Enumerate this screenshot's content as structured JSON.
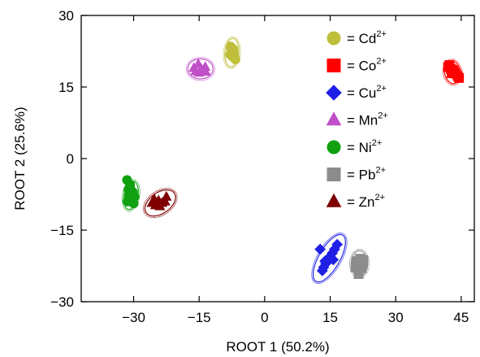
{
  "chart_data": {
    "type": "scatter",
    "xlabel": "ROOT 1 (50.2%)",
    "ylabel": "ROOT 2 (25.6%)",
    "xlim": [
      -42,
      48
    ],
    "ylim": [
      -30,
      30
    ],
    "xticks": [
      -30,
      -15,
      0,
      15,
      30,
      45
    ],
    "xtick_labels": [
      "−30",
      "−15",
      "0",
      "15",
      "30",
      "45"
    ],
    "yticks": [
      -30,
      -15,
      0,
      15,
      30
    ],
    "ytick_labels": [
      "−30",
      "−15",
      "0",
      "15",
      "30"
    ],
    "grid": false,
    "legend_position": "top-right",
    "series": [
      {
        "name": "Cd",
        "legend_prefix": "= ",
        "legend_sup": "2+",
        "marker": "circle",
        "color": "#bfbf3c",
        "ellipse": {
          "cx": -7.5,
          "cy": 22.2,
          "rx": 1.6,
          "ry": 3.0,
          "angle": 5
        },
        "points": [
          [
            -7.8,
            23.5
          ],
          [
            -7.2,
            23.0
          ],
          [
            -7.5,
            22.4
          ],
          [
            -7.0,
            22.0
          ],
          [
            -7.9,
            21.8
          ],
          [
            -7.3,
            21.3
          ],
          [
            -6.8,
            21.0
          ],
          [
            -7.6,
            22.8
          ],
          [
            -7.1,
            21.6
          ],
          [
            -6.7,
            20.8
          ],
          [
            -7.7,
            23.2
          ]
        ]
      },
      {
        "name": "Co",
        "legend_prefix": "= ",
        "legend_sup": "2+",
        "marker": "square",
        "color": "#ff0000",
        "ellipse": {
          "cx": 43.0,
          "cy": 18.1,
          "rx": 1.8,
          "ry": 2.4,
          "angle": -10
        },
        "points": [
          [
            42.0,
            19.2
          ],
          [
            42.6,
            18.8
          ],
          [
            43.2,
            18.4
          ],
          [
            43.8,
            17.8
          ],
          [
            44.2,
            17.3
          ],
          [
            42.3,
            19.6
          ],
          [
            43.5,
            18.0
          ],
          [
            44.5,
            16.9
          ],
          [
            43.0,
            18.6
          ],
          [
            42.8,
            17.9
          ]
        ]
      },
      {
        "name": "Cu",
        "legend_prefix": "= ",
        "legend_sup": "2+",
        "marker": "diamond",
        "color": "#1f1fe6",
        "ellipse": {
          "cx": 14.8,
          "cy": -20.9,
          "rx": 2.4,
          "ry": 5.6,
          "angle": 30
        },
        "points": [
          [
            16.6,
            -18.0
          ],
          [
            16.0,
            -19.0
          ],
          [
            15.5,
            -19.8
          ],
          [
            15.0,
            -20.5
          ],
          [
            14.5,
            -21.3
          ],
          [
            14.0,
            -22.0
          ],
          [
            13.5,
            -22.8
          ],
          [
            13.2,
            -23.5
          ],
          [
            12.7,
            -19.0
          ],
          [
            14.8,
            -20.8
          ],
          [
            15.7,
            -21.2
          ],
          [
            13.8,
            -21.5
          ]
        ]
      },
      {
        "name": "Mn",
        "legend_prefix": "= ",
        "legend_sup": "2+",
        "marker": "triangle",
        "color": "#c050c8",
        "ellipse": {
          "cx": -14.7,
          "cy": 18.8,
          "rx": 2.9,
          "ry": 2.1,
          "angle": 0
        },
        "points": [
          [
            -16.2,
            19.0
          ],
          [
            -15.2,
            19.8
          ],
          [
            -14.5,
            18.8
          ],
          [
            -13.6,
            19.2
          ],
          [
            -15.8,
            18.3
          ],
          [
            -14.0,
            18.5
          ],
          [
            -15.0,
            18.0
          ],
          [
            -13.5,
            18.2
          ]
        ]
      },
      {
        "name": "Ni",
        "legend_prefix": "= ",
        "legend_sup": "2+",
        "marker": "circle",
        "color": "#10a010",
        "ellipse": {
          "cx": -30.6,
          "cy": -7.7,
          "rx": 1.6,
          "ry": 3.0,
          "angle": 10
        },
        "points": [
          [
            -31.5,
            -4.5
          ],
          [
            -30.8,
            -5.5
          ],
          [
            -31.2,
            -6.5
          ],
          [
            -30.2,
            -7.0
          ],
          [
            -31.0,
            -7.8
          ],
          [
            -30.4,
            -8.5
          ],
          [
            -29.8,
            -8.0
          ],
          [
            -31.4,
            -9.0
          ],
          [
            -30.0,
            -9.4
          ],
          [
            -30.8,
            -6.2
          ]
        ]
      },
      {
        "name": "Pb",
        "legend_prefix": "= ",
        "legend_sup": "2+",
        "marker": "square",
        "color": "#8c8c8c",
        "ellipse": {
          "cx": 21.7,
          "cy": -22.0,
          "rx": 1.9,
          "ry": 2.7,
          "angle": 0
        },
        "points": [
          [
            21.0,
            -21.5
          ],
          [
            21.8,
            -21.0
          ],
          [
            22.5,
            -22.0
          ],
          [
            21.3,
            -22.5
          ],
          [
            22.2,
            -23.0
          ],
          [
            21.5,
            -24.2
          ],
          [
            22.6,
            -21.3
          ],
          [
            20.8,
            -22.8
          ]
        ]
      },
      {
        "name": "Zn",
        "legend_prefix": "= ",
        "legend_sup": "2+",
        "marker": "triangle",
        "color": "#7f0000",
        "ellipse": {
          "cx": -23.9,
          "cy": -9.3,
          "rx": 2.4,
          "ry": 3.6,
          "angle": 55
        },
        "points": [
          [
            -25.8,
            -9.3
          ],
          [
            -25.0,
            -9.8
          ],
          [
            -24.3,
            -8.8
          ],
          [
            -23.5,
            -9.3
          ],
          [
            -22.5,
            -8.0
          ],
          [
            -24.0,
            -10.0
          ],
          [
            -22.8,
            -9.0
          ],
          [
            -25.3,
            -8.5
          ]
        ]
      }
    ]
  }
}
